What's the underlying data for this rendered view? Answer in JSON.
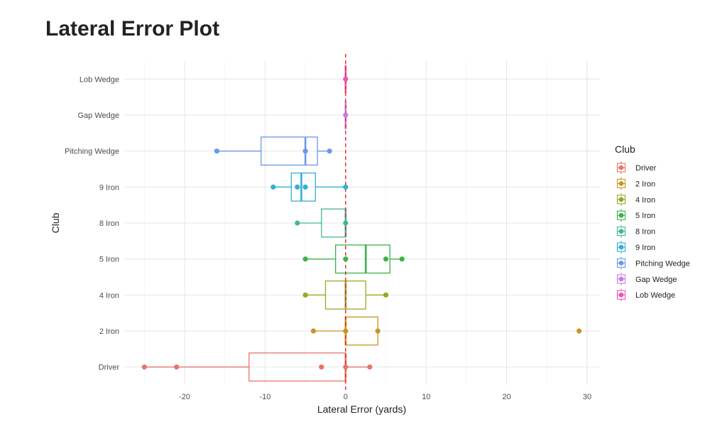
{
  "chart_data": {
    "type": "boxplot",
    "title": "Lateral Error Plot",
    "xlabel": "Lateral Error (yards)",
    "ylabel": "Club",
    "xlim": [
      -27.5,
      31.5
    ],
    "xticks": [
      -20,
      -10,
      0,
      10,
      20,
      30
    ],
    "grid": true,
    "legend_title": "Club",
    "legend_position": "right",
    "reference_line": {
      "x": 0,
      "color": "#e8231f",
      "style": "dashed"
    },
    "categories": [
      "Driver",
      "2 Iron",
      "4 Iron",
      "5 Iron",
      "8 Iron",
      "9 Iron",
      "Pitching Wedge",
      "Gap Wedge",
      "Lob Wedge"
    ],
    "series": [
      {
        "name": "Driver",
        "color": "#e8756a",
        "box": {
          "whisker_low": -25,
          "q1": -12,
          "median": 0,
          "q3": 0,
          "whisker_high": 3
        },
        "points": [
          -25,
          -21,
          -3,
          0,
          3
        ]
      },
      {
        "name": "2 Iron",
        "color": "#c99421",
        "box": {
          "whisker_low": -4,
          "q1": 0,
          "median": 0,
          "q3": 4,
          "whisker_high": 4
        },
        "points": [
          -4,
          0,
          4,
          29
        ]
      },
      {
        "name": "4 Iron",
        "color": "#9aa627",
        "box": {
          "whisker_low": -5,
          "q1": -2.5,
          "median": 0,
          "q3": 2.5,
          "whisker_high": 5
        },
        "points": [
          -5,
          5
        ]
      },
      {
        "name": "5 Iron",
        "color": "#3db34a",
        "box": {
          "whisker_low": -5,
          "q1": -1.25,
          "median": 2.5,
          "q3": 5.5,
          "whisker_high": 7
        },
        "points": [
          -5,
          0,
          5,
          7
        ]
      },
      {
        "name": "8 Iron",
        "color": "#3fb894",
        "box": {
          "whisker_low": -6,
          "q1": -3,
          "median": 0,
          "q3": 0,
          "whisker_high": 0
        },
        "points": [
          -6,
          0
        ]
      },
      {
        "name": "9 Iron",
        "color": "#35afd4",
        "box": {
          "whisker_low": -9,
          "q1": -6.75,
          "median": -5.5,
          "q3": -3.75,
          "whisker_high": 0
        },
        "points": [
          -9,
          -6,
          -5,
          0
        ]
      },
      {
        "name": "Pitching Wedge",
        "color": "#6b98e8",
        "box": {
          "whisker_low": -16,
          "q1": -10.5,
          "median": -5,
          "q3": -3.5,
          "whisker_high": -2
        },
        "points": [
          -16,
          -5,
          -2
        ]
      },
      {
        "name": "Gap Wedge",
        "color": "#c77ce8",
        "box": {
          "whisker_low": 0,
          "q1": 0,
          "median": 0,
          "q3": 0,
          "whisker_high": 0
        },
        "points": [
          0
        ]
      },
      {
        "name": "Lob Wedge",
        "color": "#e958b5",
        "box": {
          "whisker_low": 0,
          "q1": 0,
          "median": 0,
          "q3": 0,
          "whisker_high": 0
        },
        "points": [
          0
        ]
      }
    ]
  }
}
